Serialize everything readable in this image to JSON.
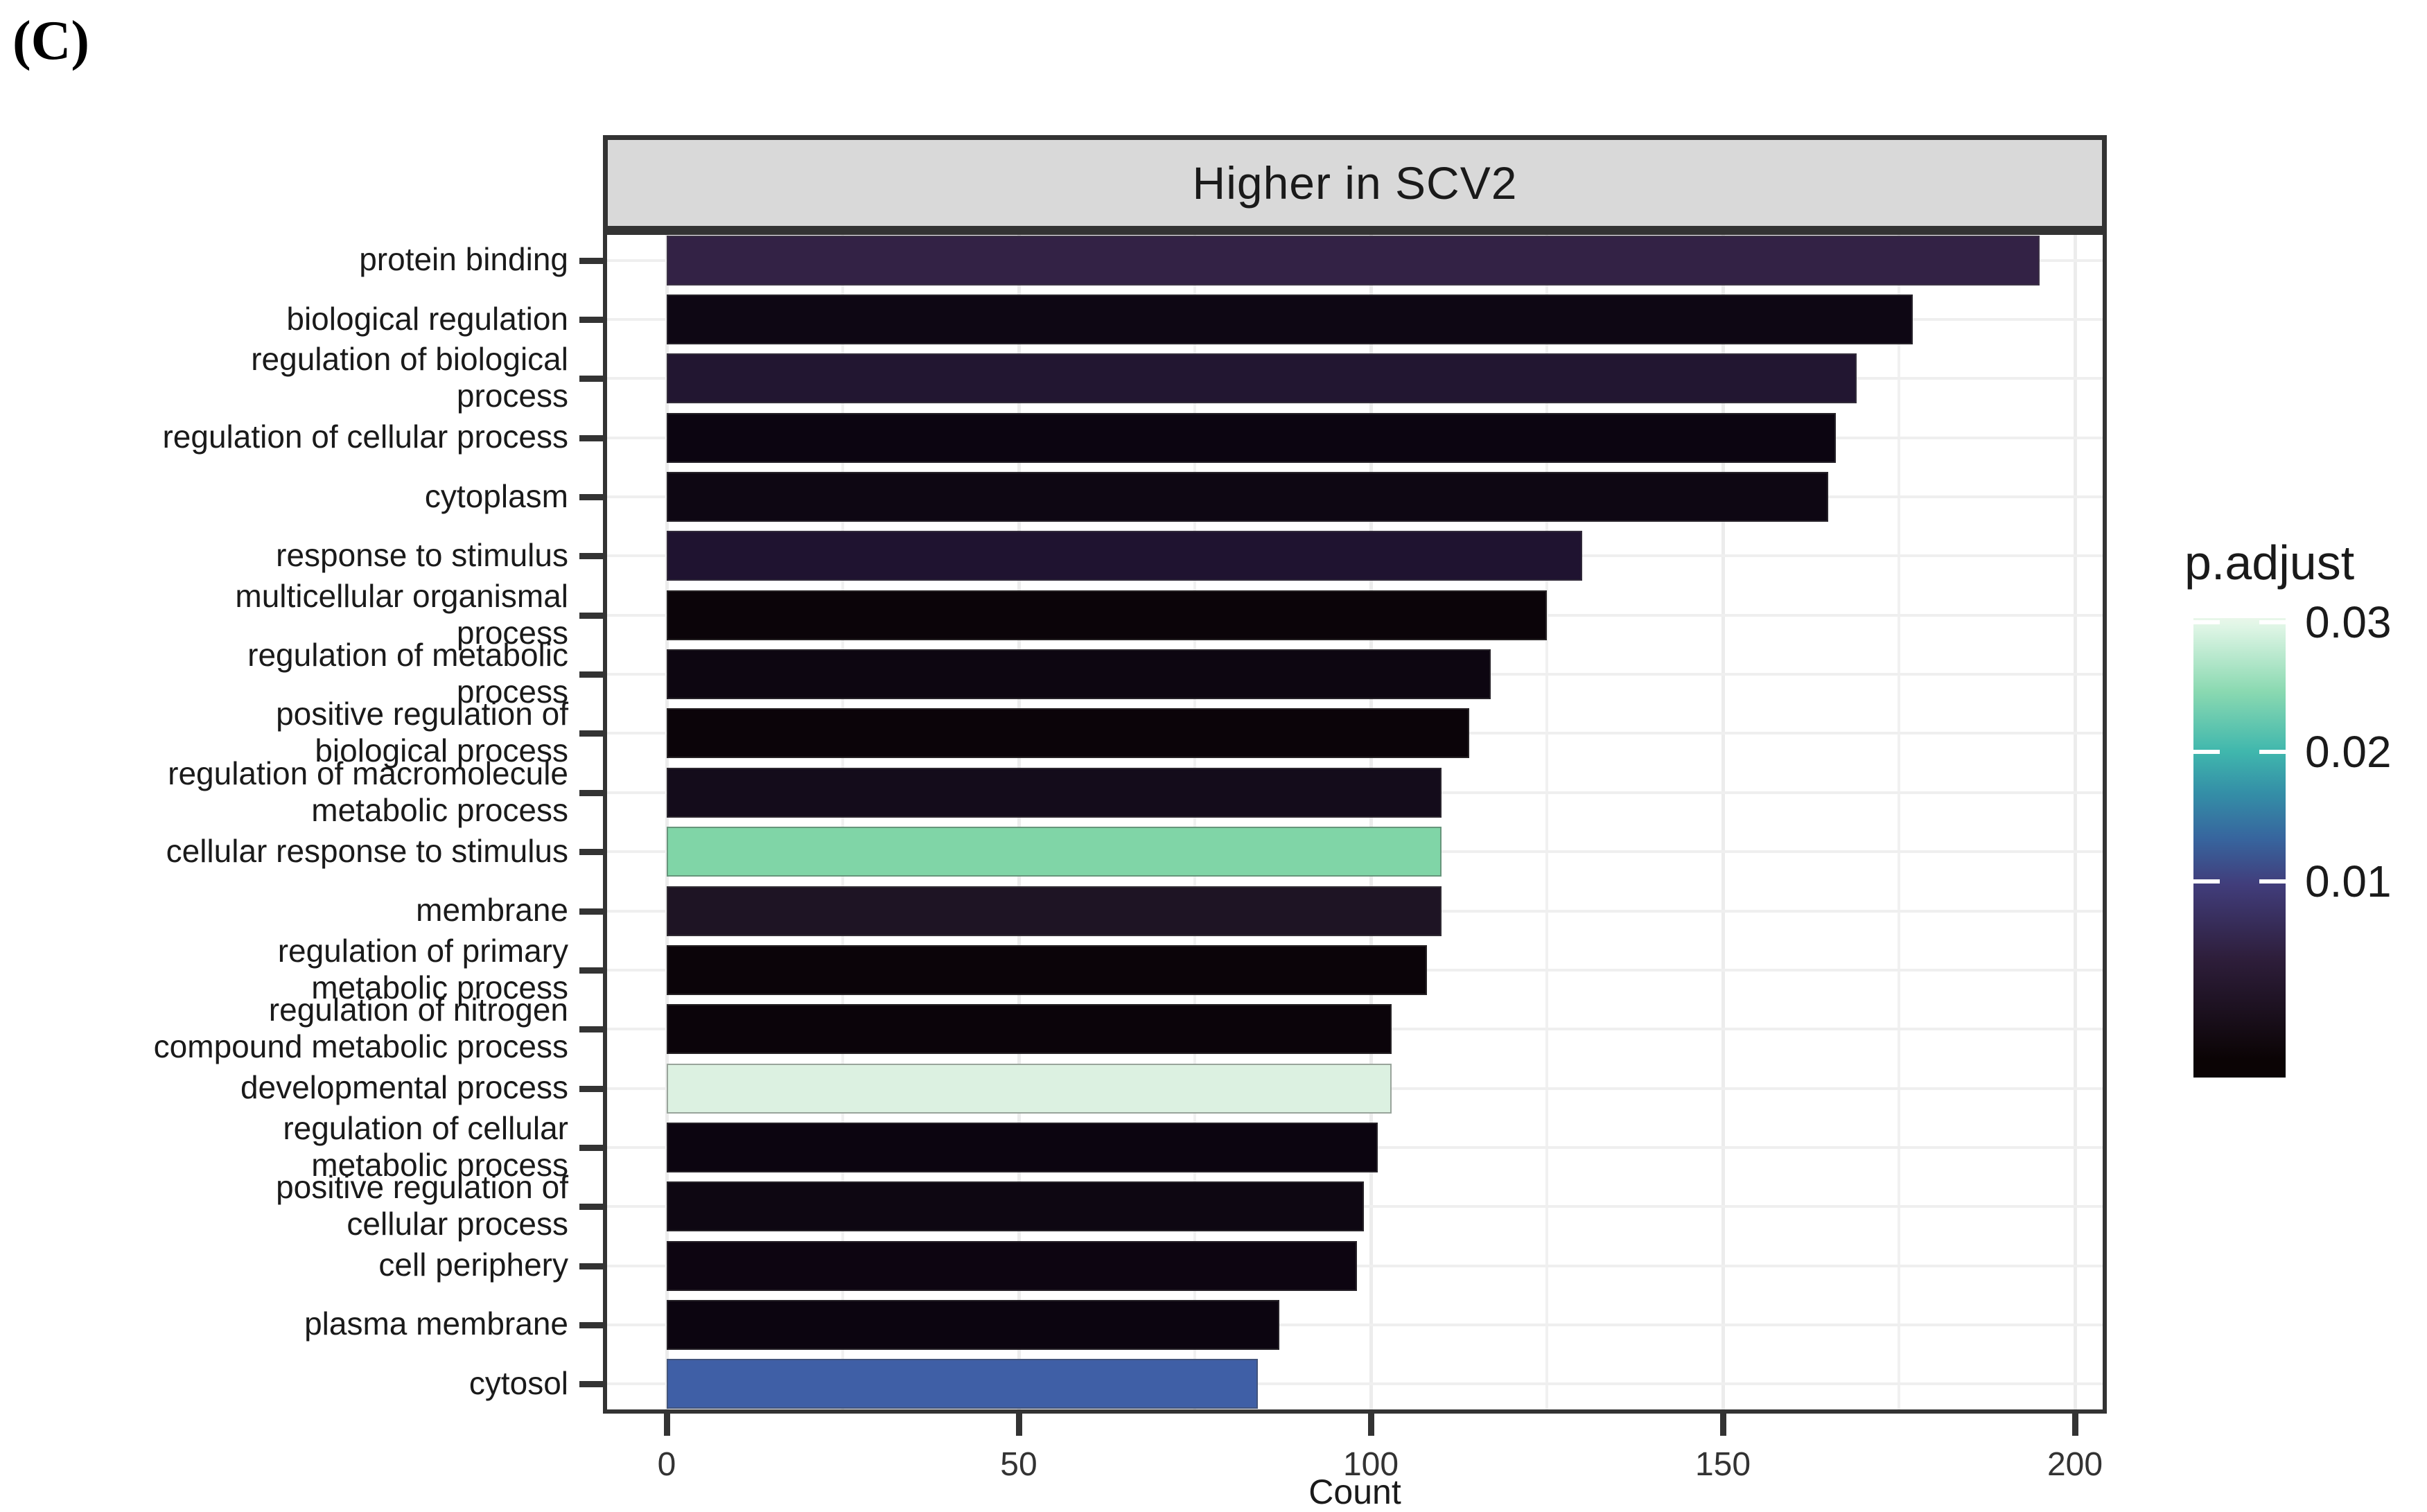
{
  "figure": {
    "panel_label": "(C)"
  },
  "chart_data": {
    "type": "bar",
    "orientation": "horizontal",
    "title": "Higher in SCV2",
    "xlabel": "Count",
    "x_ticks": [
      0,
      50,
      100,
      150,
      200
    ],
    "x_minor_ticks": [
      25,
      75,
      125,
      175
    ],
    "xlim": [
      0,
      205
    ],
    "grid": true,
    "categories": [
      "protein binding",
      "biological regulation",
      "regulation of biological process",
      "regulation of cellular process",
      "cytoplasm",
      "response to stimulus",
      "multicellular organismal process",
      "regulation of metabolic process",
      "positive regulation of biological process",
      "regulation of macromolecule metabolic process",
      "cellular response to stimulus",
      "membrane",
      "regulation of primary metabolic process",
      "regulation of nitrogen compound metabolic process",
      "developmental process",
      "regulation of cellular metabolic process",
      "positive regulation of cellular process",
      "cell periphery",
      "plasma membrane",
      "cytosol"
    ],
    "category_lines": [
      [
        "protein binding"
      ],
      [
        "biological regulation"
      ],
      [
        "regulation of biological",
        "process"
      ],
      [
        "regulation of cellular process"
      ],
      [
        "cytoplasm"
      ],
      [
        "response to stimulus"
      ],
      [
        "multicellular organismal",
        "process"
      ],
      [
        "regulation of metabolic",
        "process"
      ],
      [
        "positive regulation of",
        "biological process"
      ],
      [
        "regulation of macromolecule",
        "metabolic process"
      ],
      [
        "cellular response to stimulus"
      ],
      [
        "membrane"
      ],
      [
        "regulation of primary",
        "metabolic process"
      ],
      [
        "regulation of nitrogen",
        "compound metabolic process"
      ],
      [
        "developmental process"
      ],
      [
        "regulation of cellular",
        "metabolic process"
      ],
      [
        "positive regulation of",
        "cellular process"
      ],
      [
        "cell periphery"
      ],
      [
        "plasma membrane"
      ],
      [
        "cytosol"
      ]
    ],
    "values": [
      195,
      177,
      169,
      166,
      165,
      130,
      125,
      117,
      114,
      110,
      110,
      110,
      108,
      103,
      103,
      101,
      99,
      98,
      87,
      84
    ],
    "bar_colors": [
      "#332245",
      "#0e0714",
      "#221631",
      "#0c0511",
      "#0e0713",
      "#1f1330",
      "#0b0409",
      "#0d0611",
      "#0b0409",
      "#140c1b",
      "#80d5a7",
      "#1e1424",
      "#0b0409",
      "#0b040a",
      "#dcf1e1",
      "#0c0510",
      "#0e0712",
      "#0d0511",
      "#0c0510",
      "#3f5fa6"
    ],
    "legend": {
      "title": "p.adjust",
      "tick_labels": [
        "0.03",
        "0.02",
        "0.01"
      ],
      "gradient_stops": [
        "#e9f7ea 0%",
        "#def5e5 2%",
        "#8ad9b1 16%",
        "#40b7ad 29%",
        "#348fa7 38%",
        "#37659e 48%",
        "#413d7b 58%",
        "#2e1e3b 74%",
        "#0b0405 96%",
        "#0b0405 100%"
      ]
    },
    "colors": {
      "strip_bg": "#d9d9d9",
      "panel_border": "#333333",
      "grid_major": "#ececec",
      "grid_minor": "#f1f1f1",
      "tick_mark": "#333333",
      "text": "#1a1a1a"
    }
  }
}
